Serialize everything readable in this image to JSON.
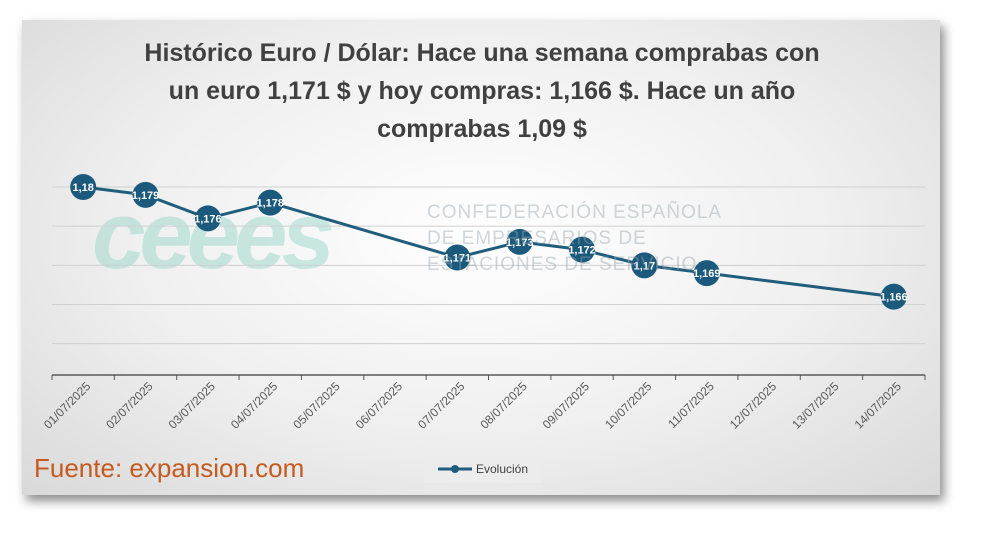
{
  "title_lines": [
    "Histórico Euro / Dólar: Hace una semana comprabas con",
    "un euro 1,171 $ y hoy compras: 1,166 $. Hace un año",
    "comprabas 1,09 $"
  ],
  "source": "Fuente: expansion.com",
  "watermark": {
    "logo_text": "ceees",
    "org_lines": [
      "CONFEDERACIÓN ESPAÑOLA",
      "DE EMPRESARIOS DE",
      "ESTACIONES DE SERVICIO"
    ]
  },
  "colors": {
    "line": "#215d7c",
    "marker": "#1b5a7d",
    "label_text": "#ffffff",
    "gridline": "#d0d0d0",
    "axis": "#595959",
    "source": "#c65a1e",
    "logo": "#8fd3c4"
  },
  "chart_data": {
    "type": "line",
    "title": "Histórico Euro / Dólar: Hace una semana comprabas con un euro 1,171 $ y hoy compras: 1,166 $. Hace un año comprabas 1,09 $",
    "xlabel": "",
    "ylabel": "",
    "categories": [
      "01/07/2025",
      "02/07/2025",
      "03/07/2025",
      "04/07/2025",
      "05/07/2025",
      "06/07/2025",
      "07/07/2025",
      "08/07/2025",
      "09/07/2025",
      "10/07/2025",
      "11/07/2025",
      "12/07/2025",
      "13/07/2025",
      "14/07/2025"
    ],
    "series": [
      {
        "name": "Evolución",
        "values": [
          1.18,
          1.179,
          1.176,
          1.178,
          null,
          null,
          1.171,
          1.173,
          1.172,
          1.17,
          1.169,
          null,
          null,
          1.166
        ],
        "labels": [
          "1,18",
          "1,179",
          "1,176",
          "1,178",
          "",
          "",
          "1,171",
          "1,173",
          "1,172",
          "1,17",
          "1,169",
          "",
          "",
          "1,166"
        ]
      }
    ],
    "ylim": [
      1.156,
      1.186
    ],
    "grid": true,
    "legend_position": "bottom"
  }
}
